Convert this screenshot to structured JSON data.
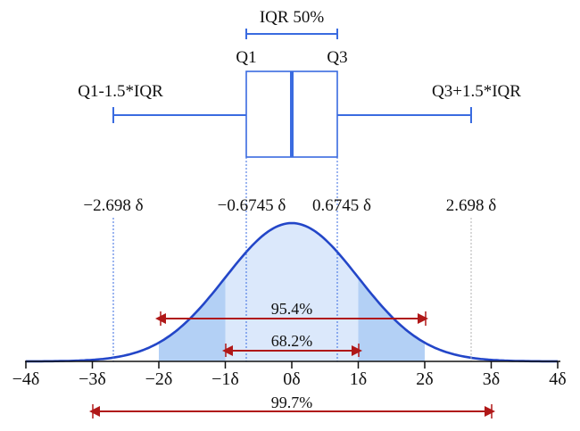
{
  "boxplot": {
    "iqr_label": "IQR 50%",
    "q1_label": "Q1",
    "q3_label": "Q3",
    "lower_whisker_label": "Q1-1.5*IQR",
    "upper_whisker_label": "Q3+1.5*IQR"
  },
  "quantile_labels": {
    "neg_2698": "−2.698 δ",
    "neg_06745": "−0.6745 δ",
    "pos_06745": "0.6745 δ",
    "pos_2698": "2.698 δ"
  },
  "axis_ticks": [
    "−4δ",
    "−3δ",
    "−2δ",
    "−1δ",
    "0δ",
    "1δ",
    "2δ",
    "3δ",
    "4δ"
  ],
  "intervals": {
    "one_sigma": "68.2%",
    "two_sigma": "95.4%",
    "three_sigma": "99.7%"
  },
  "colors": {
    "curve": "#2346c8",
    "box": "#3a6be0",
    "fill_center": "#dbe8fb",
    "fill_tails": "#b3d0f5",
    "interval_arrows": "#b01818",
    "axis": "#111111",
    "guide_lines": "#3a6be0"
  }
}
